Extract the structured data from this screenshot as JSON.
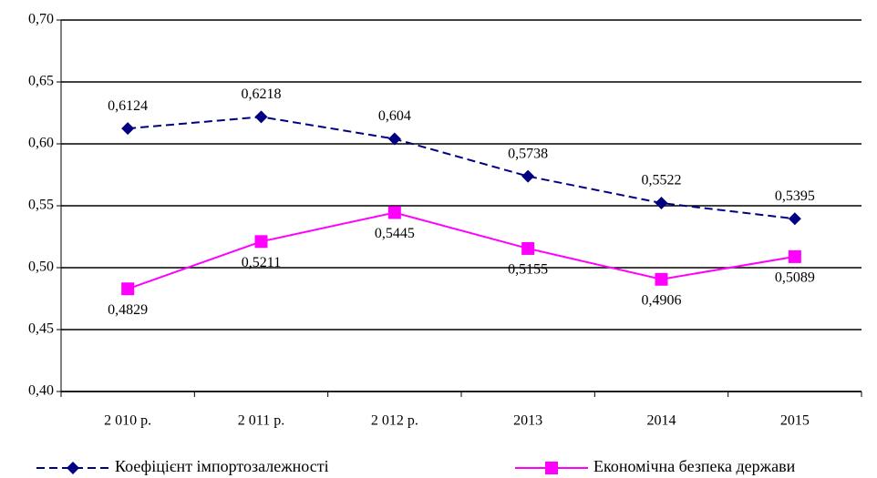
{
  "chart_data": {
    "type": "line",
    "categories": [
      "2 010 р.",
      "2 011 р.",
      "2 012 р.",
      "2013",
      "2014",
      "2015"
    ],
    "series": [
      {
        "name": "Коефіцієнт імпортозалежності",
        "color": "#000080",
        "marker": "diamond",
        "dash": true,
        "values": [
          0.6124,
          0.6218,
          0.604,
          0.5738,
          0.5522,
          0.5395
        ],
        "value_labels": [
          "0,6124",
          "0,6218",
          "0,604",
          "0,5738",
          "0,5522",
          "0,5395"
        ]
      },
      {
        "name": "Економічна безпека держави",
        "color": "#ff00ff",
        "marker": "square",
        "dash": false,
        "values": [
          0.4829,
          0.5211,
          0.5445,
          0.5155,
          0.4906,
          0.5089
        ],
        "value_labels": [
          "0,4829",
          "0,5211",
          "0,5445",
          "0,5155",
          "0,4906",
          "0,5089"
        ]
      }
    ],
    "ylim": [
      0.4,
      0.7
    ],
    "yticks": [
      {
        "value": 0.4,
        "label": "0,40"
      },
      {
        "value": 0.45,
        "label": "0,45"
      },
      {
        "value": 0.5,
        "label": "0,50"
      },
      {
        "value": 0.55,
        "label": "0,55"
      },
      {
        "value": 0.6,
        "label": "0,60"
      },
      {
        "value": 0.65,
        "label": "0,65"
      },
      {
        "value": 0.7,
        "label": "0,70"
      }
    ],
    "grid": true
  }
}
